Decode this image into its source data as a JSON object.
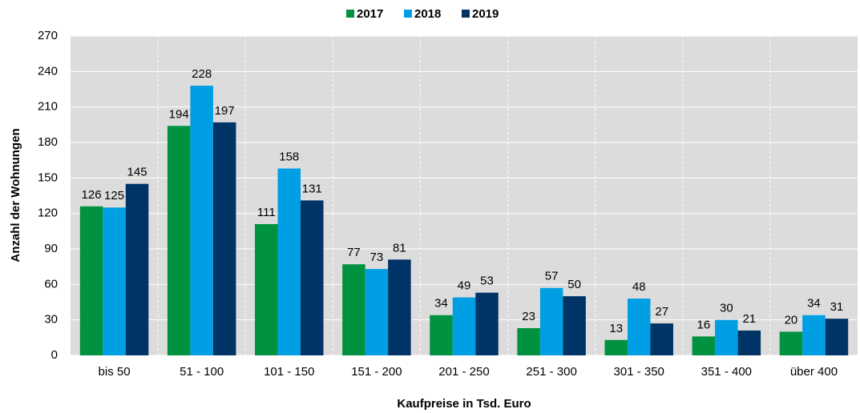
{
  "chart_data": {
    "type": "bar",
    "x_label": "Kaufpreise in Tsd. Euro",
    "y_label": "Anzahl der Wohnungen",
    "categories": [
      "bis 50",
      "51 - 100",
      "101 - 150",
      "151 - 200",
      "201 - 250",
      "251 - 300",
      "301 - 350",
      "351 - 400",
      "über 400"
    ],
    "series": [
      {
        "name": "2017",
        "color": "#00923f",
        "values": [
          126,
          194,
          111,
          77,
          34,
          23,
          13,
          16,
          20
        ]
      },
      {
        "name": "2018",
        "color": "#009fe3",
        "values": [
          125,
          228,
          158,
          73,
          49,
          57,
          48,
          30,
          34
        ]
      },
      {
        "name": "2019",
        "color": "#003366",
        "values": [
          145,
          197,
          131,
          81,
          53,
          50,
          27,
          21,
          31
        ]
      }
    ],
    "ylim": [
      0,
      270
    ],
    "yticks": [
      0,
      30,
      60,
      90,
      120,
      150,
      180,
      210,
      240,
      270
    ],
    "grid": true,
    "legend": "top"
  }
}
